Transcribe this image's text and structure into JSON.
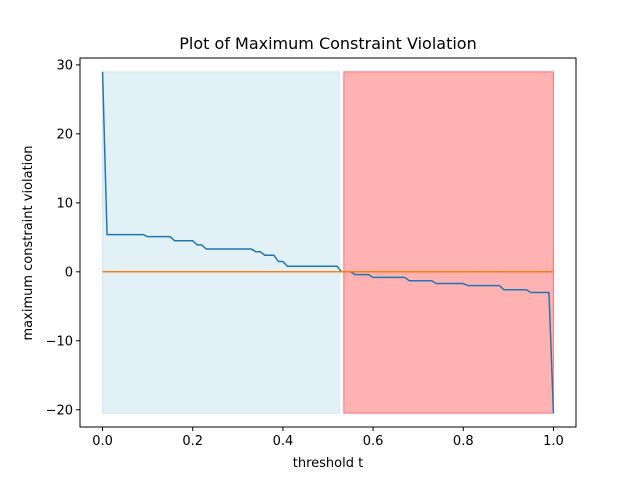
{
  "chart_data": {
    "type": "line",
    "title": "Plot of Maximum Constraint Violation",
    "xlabel": "threshold t",
    "ylabel": "maximum constraint violation",
    "xlim": [
      -0.05,
      1.05
    ],
    "ylim": [
      -22.5,
      31.0
    ],
    "xticks": [
      0.0,
      0.2,
      0.4,
      0.6,
      0.8,
      1.0
    ],
    "xtick_labels": [
      "0.0",
      "0.2",
      "0.4",
      "0.6",
      "0.8",
      "1.0"
    ],
    "yticks": [
      -20,
      -10,
      0,
      10,
      20,
      30
    ],
    "ytick_labels": [
      "−20",
      "−10",
      "0",
      "10",
      "20",
      "30"
    ],
    "grid": false,
    "series": [
      {
        "color": "#1f77b4",
        "points": [
          [
            0.0,
            29.0
          ],
          [
            0.01,
            5.4
          ],
          [
            0.09,
            5.4
          ],
          [
            0.1,
            5.1
          ],
          [
            0.15,
            5.1
          ],
          [
            0.16,
            4.5
          ],
          [
            0.2,
            4.5
          ],
          [
            0.21,
            3.9
          ],
          [
            0.22,
            3.9
          ],
          [
            0.23,
            3.3
          ],
          [
            0.33,
            3.3
          ],
          [
            0.34,
            2.9
          ],
          [
            0.35,
            2.9
          ],
          [
            0.36,
            2.4
          ],
          [
            0.38,
            2.4
          ],
          [
            0.39,
            1.5
          ],
          [
            0.4,
            1.5
          ],
          [
            0.41,
            0.8
          ],
          [
            0.52,
            0.8
          ],
          [
            0.53,
            0.0
          ],
          [
            0.55,
            0.0
          ],
          [
            0.56,
            -0.4
          ],
          [
            0.59,
            -0.4
          ],
          [
            0.6,
            -0.8
          ],
          [
            0.67,
            -0.8
          ],
          [
            0.68,
            -1.3
          ],
          [
            0.73,
            -1.3
          ],
          [
            0.74,
            -1.7
          ],
          [
            0.8,
            -1.7
          ],
          [
            0.81,
            -2.0
          ],
          [
            0.88,
            -2.0
          ],
          [
            0.89,
            -2.6
          ],
          [
            0.94,
            -2.6
          ],
          [
            0.95,
            -3.0
          ],
          [
            0.99,
            -3.0
          ],
          [
            1.0,
            -20.5
          ]
        ]
      },
      {
        "color": "#ff7f0e",
        "points": [
          [
            0.0,
            0.0
          ],
          [
            1.0,
            0.0
          ]
        ]
      }
    ],
    "regions": [
      {
        "x0": 0.0,
        "x1": 0.525,
        "y0": -20.5,
        "y1": 29.0,
        "color": "#add8e6",
        "opacity": 0.35
      },
      {
        "x0": 0.535,
        "x1": 1.0,
        "y0": -20.5,
        "y1": 29.0,
        "color": "#ff0000",
        "opacity": 0.3
      }
    ]
  }
}
